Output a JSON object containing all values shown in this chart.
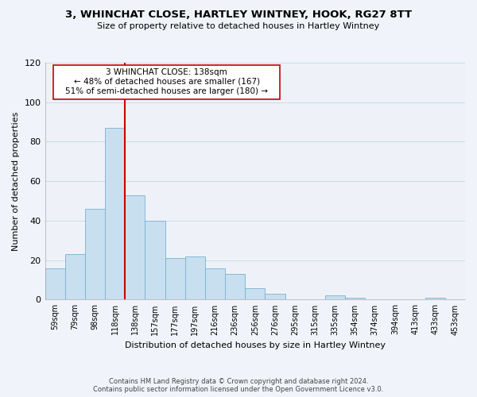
{
  "title": "3, WHINCHAT CLOSE, HARTLEY WINTNEY, HOOK, RG27 8TT",
  "subtitle": "Size of property relative to detached houses in Hartley Wintney",
  "xlabel": "Distribution of detached houses by size in Hartley Wintney",
  "ylabel": "Number of detached properties",
  "bin_labels": [
    "59sqm",
    "79sqm",
    "98sqm",
    "118sqm",
    "138sqm",
    "157sqm",
    "177sqm",
    "197sqm",
    "216sqm",
    "236sqm",
    "256sqm",
    "276sqm",
    "295sqm",
    "315sqm",
    "335sqm",
    "354sqm",
    "374sqm",
    "394sqm",
    "413sqm",
    "433sqm",
    "453sqm"
  ],
  "bar_heights": [
    16,
    23,
    46,
    87,
    53,
    40,
    21,
    22,
    16,
    13,
    6,
    3,
    0,
    0,
    2,
    1,
    0,
    0,
    0,
    1,
    0
  ],
  "bar_color": "#c8dff0",
  "bar_edge_color": "#7ab0d0",
  "vline_color": "#cc0000",
  "vline_index": 3.5,
  "ylim": [
    0,
    120
  ],
  "yticks": [
    0,
    20,
    40,
    60,
    80,
    100,
    120
  ],
  "annotation_text_line1": "3 WHINCHAT CLOSE: 138sqm",
  "annotation_text_line2": "← 48% of detached houses are smaller (167)",
  "annotation_text_line3": "51% of semi-detached houses are larger (180) →",
  "footer_line1": "Contains HM Land Registry data © Crown copyright and database right 2024.",
  "footer_line2": "Contains public sector information licensed under the Open Government Licence v3.0.",
  "bg_color": "#f0f4fa",
  "plot_bg_color": "#eef2f8",
  "grid_color": "#d0d8e8"
}
